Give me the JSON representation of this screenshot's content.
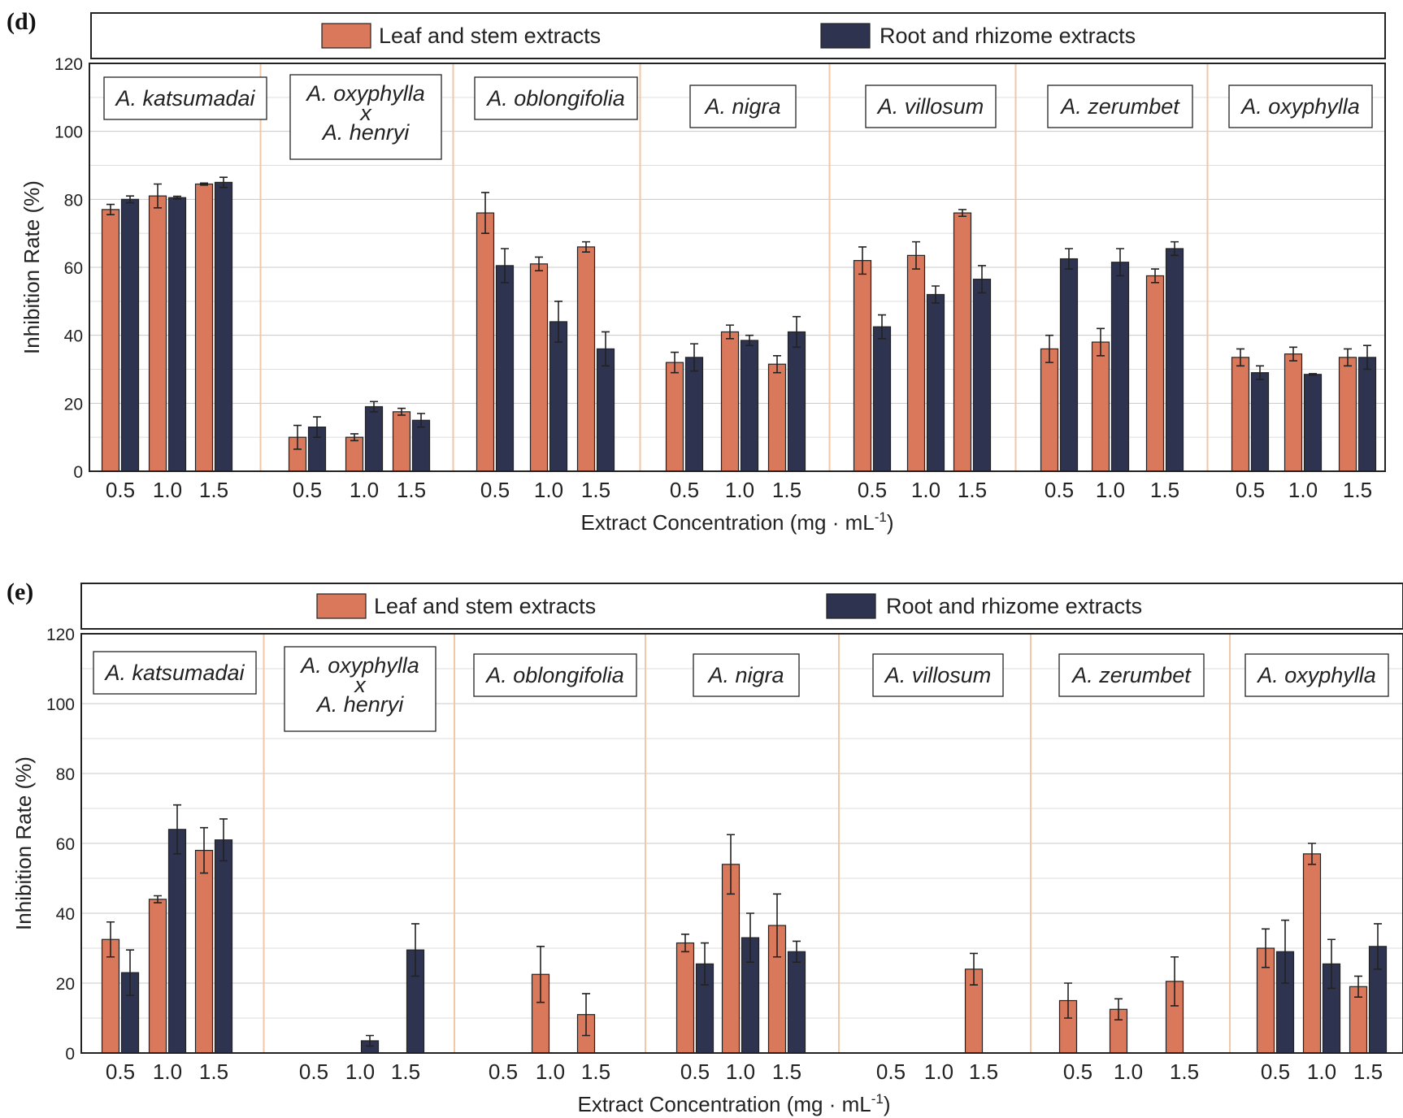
{
  "colors": {
    "leaf": "#d9785a",
    "root": "#2e3350"
  },
  "chart_data": [
    {
      "panel": "(d)",
      "type": "bar",
      "legend": [
        "Leaf and stem extracts",
        "Root and rhizome extracts"
      ],
      "ylabel": "Inhibition Rate (%)",
      "xlabel": "Extract Concentration (mg · mL",
      "xlabel_sup": "-1",
      "xlabel_end": ")",
      "ylim": [
        0,
        120
      ],
      "yticks": [
        0,
        20,
        40,
        60,
        80,
        100,
        120
      ],
      "concentrations": [
        "0.5",
        "1.0",
        "1.5"
      ],
      "groups": [
        {
          "name": "A. katsumadai",
          "name_lines": [
            "A. katsumadai"
          ],
          "leaf": [
            77,
            81,
            84.5
          ],
          "leaf_err": [
            1.5,
            3.5,
            0.3
          ],
          "root": [
            80,
            80.5,
            85
          ],
          "root_err": [
            1,
            0.4,
            1.5
          ]
        },
        {
          "name": "A. oxyphylla x A. henryi",
          "name_lines": [
            "A. oxyphylla",
            "x",
            "A. henryi"
          ],
          "leaf": [
            10,
            10,
            17.5
          ],
          "leaf_err": [
            3.5,
            1,
            1
          ],
          "root": [
            13,
            19,
            15
          ],
          "root_err": [
            3,
            1.5,
            2
          ]
        },
        {
          "name": "A. oblongifolia",
          "name_lines": [
            "A. oblongifolia"
          ],
          "leaf": [
            76,
            61,
            66
          ],
          "leaf_err": [
            6,
            2,
            1.5
          ],
          "root": [
            60.5,
            44,
            36
          ],
          "root_err": [
            5,
            6,
            5
          ]
        },
        {
          "name": "A. nigra",
          "name_lines": [
            "A. nigra"
          ],
          "leaf": [
            32,
            41,
            31.5
          ],
          "leaf_err": [
            3,
            2,
            2.5
          ],
          "root": [
            33.5,
            38.5,
            41
          ],
          "root_err": [
            4,
            1.5,
            4.5
          ]
        },
        {
          "name": "A. villosum",
          "name_lines": [
            "A. villosum"
          ],
          "leaf": [
            62,
            63.5,
            76
          ],
          "leaf_err": [
            4,
            4,
            1
          ],
          "root": [
            42.5,
            52,
            56.5
          ],
          "root_err": [
            3.5,
            2.5,
            4
          ]
        },
        {
          "name": "A. zerumbet",
          "name_lines": [
            "A. zerumbet"
          ],
          "leaf": [
            36,
            38,
            57.5
          ],
          "leaf_err": [
            4,
            4,
            2
          ],
          "root": [
            62.5,
            61.5,
            65.5
          ],
          "root_err": [
            3,
            4,
            2
          ]
        },
        {
          "name": "A. oxyphylla",
          "name_lines": [
            "A. oxyphylla"
          ],
          "leaf": [
            33.5,
            34.5,
            33.5
          ],
          "leaf_err": [
            2.5,
            2,
            2.5
          ],
          "root": [
            29,
            28.5,
            33.5
          ],
          "root_err": [
            2,
            0.2,
            3.5
          ]
        }
      ]
    },
    {
      "panel": "(e)",
      "type": "bar",
      "legend": [
        "Leaf and stem extracts",
        "Root and rhizome extracts"
      ],
      "ylabel": "Inhibition Rate (%)",
      "xlabel": "Extract Concentration (mg · mL",
      "xlabel_sup": "-1",
      "xlabel_end": ")",
      "ylim": [
        0,
        120
      ],
      "yticks": [
        0,
        20,
        40,
        60,
        80,
        100,
        120
      ],
      "concentrations": [
        "0.5",
        "1.0",
        "1.5"
      ],
      "groups": [
        {
          "name": "A. katsumadai",
          "name_lines": [
            "A. katsumadai"
          ],
          "leaf": [
            32.5,
            44,
            58
          ],
          "leaf_err": [
            5,
            1,
            6.5
          ],
          "root": [
            23,
            64,
            61
          ],
          "root_err": [
            6.5,
            7,
            6
          ]
        },
        {
          "name": "A. oxyphylla x A. henryi",
          "name_lines": [
            "A. oxyphylla",
            "x",
            "A. henryi"
          ],
          "leaf": [
            0,
            0,
            0
          ],
          "leaf_err": [
            0,
            0,
            0
          ],
          "root": [
            0,
            3.5,
            29.5
          ],
          "root_err": [
            0,
            1.5,
            7.5
          ]
        },
        {
          "name": "A. oblongifolia",
          "name_lines": [
            "A. oblongifolia"
          ],
          "leaf": [
            0,
            22.5,
            11
          ],
          "leaf_err": [
            0,
            8,
            6
          ],
          "root": [
            0,
            0,
            0
          ],
          "root_err": [
            0,
            0,
            0
          ]
        },
        {
          "name": "A. nigra",
          "name_lines": [
            "A. nigra"
          ],
          "leaf": [
            31.5,
            54,
            36.5
          ],
          "leaf_err": [
            2.5,
            8.5,
            9
          ],
          "root": [
            25.5,
            33,
            29
          ],
          "root_err": [
            6,
            7,
            3
          ]
        },
        {
          "name": "A. villosum",
          "name_lines": [
            "A. villosum"
          ],
          "leaf": [
            0,
            0,
            24
          ],
          "leaf_err": [
            0,
            0,
            4.5
          ],
          "root": [
            0,
            0,
            0
          ],
          "root_err": [
            0,
            0,
            0
          ]
        },
        {
          "name": "A. zerumbet",
          "name_lines": [
            "A. zerumbet"
          ],
          "leaf": [
            15,
            12.5,
            20.5
          ],
          "leaf_err": [
            5,
            3,
            7
          ],
          "root": [
            0,
            0,
            0
          ],
          "root_err": [
            0,
            0,
            0
          ]
        },
        {
          "name": "A. oxyphylla",
          "name_lines": [
            "A. oxyphylla"
          ],
          "leaf": [
            30,
            57,
            19
          ],
          "leaf_err": [
            5.5,
            3,
            3
          ],
          "root": [
            29,
            25.5,
            30.5
          ],
          "root_err": [
            9,
            7,
            6.5
          ]
        }
      ]
    }
  ]
}
